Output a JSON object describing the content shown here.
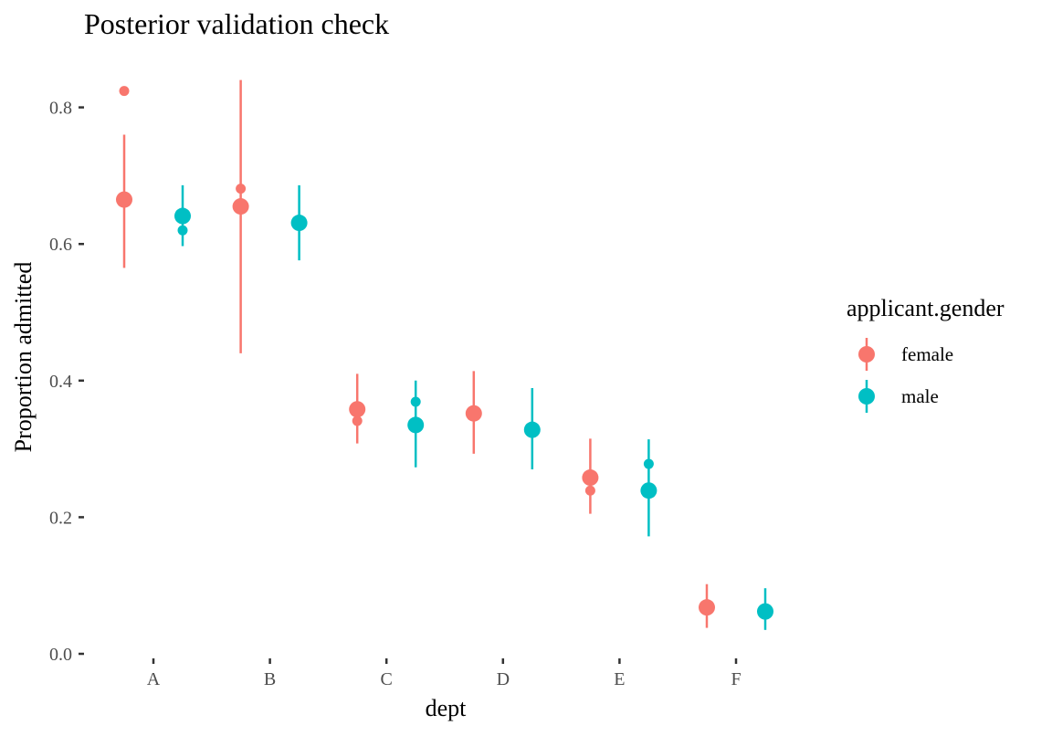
{
  "chart_data": {
    "type": "scatter",
    "title": "Posterior validation check",
    "xlabel": "dept",
    "ylabel": "Proportion admitted",
    "categories": [
      "A",
      "B",
      "C",
      "D",
      "E",
      "F"
    ],
    "y_ticks": [
      "0.0",
      "0.2",
      "0.4",
      "0.6",
      "0.8"
    ],
    "ylim": [
      0,
      0.85
    ],
    "grid": false,
    "legend": {
      "title": "applicant.gender",
      "placement": "right",
      "entries": [
        "female",
        "male"
      ]
    },
    "series": [
      {
        "name": "female",
        "color": "#F8766D",
        "dodge": "left",
        "posterior_mean": [
          0.665,
          0.655,
          0.358,
          0.352,
          0.258,
          0.068
        ],
        "lower": [
          0.565,
          0.44,
          0.308,
          0.293,
          0.205,
          0.038
        ],
        "upper": [
          0.76,
          0.84,
          0.41,
          0.414,
          0.315,
          0.102
        ],
        "observed": [
          0.824,
          0.681,
          0.341,
          null,
          0.239,
          null
        ]
      },
      {
        "name": "male",
        "color": "#00BFC4",
        "dodge": "right",
        "posterior_mean": [
          0.641,
          0.631,
          0.335,
          0.328,
          0.239,
          0.062
        ],
        "lower": [
          0.597,
          0.576,
          0.273,
          0.27,
          0.172,
          0.035
        ],
        "upper": [
          0.686,
          0.686,
          0.4,
          0.389,
          0.314,
          0.096
        ],
        "observed": [
          0.62,
          null,
          0.369,
          null,
          0.278,
          null
        ]
      }
    ]
  }
}
